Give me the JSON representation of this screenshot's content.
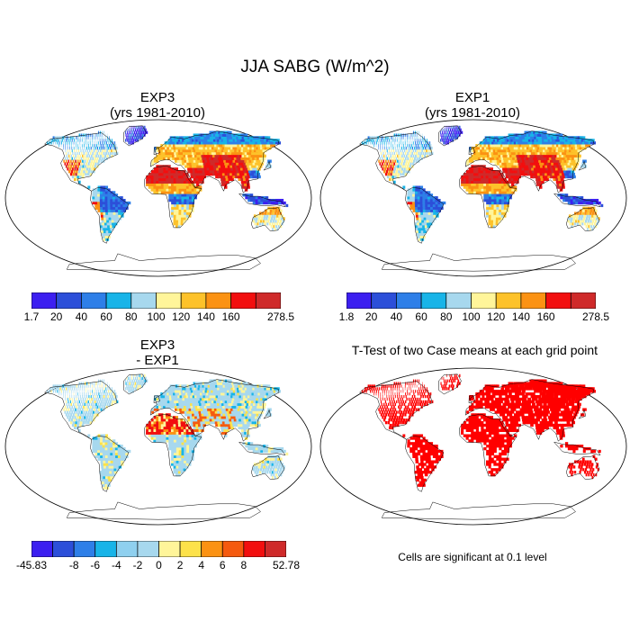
{
  "figure": {
    "title": "JJA SABG (W/m^2)",
    "note": "Cells are significant at 0.1 level"
  },
  "chart_data": [
    {
      "type": "heatmap",
      "panel": "top-left",
      "title_line1": "EXP3",
      "title_line2": "(yrs 1981-2010)",
      "variable": "JJA SABG",
      "units": "W/m^2",
      "projection": "robinson",
      "colorbar": {
        "ticks": [
          "1.7",
          "20",
          "40",
          "60",
          "80",
          "100",
          "120",
          "140",
          "160",
          "278.5"
        ],
        "colors": [
          "#3c1ff0",
          "#2c4fd9",
          "#2e7fe8",
          "#18b4e8",
          "#a7d8ee",
          "#fff59a",
          "#fdc22a",
          "#fb9213",
          "#f20f0f",
          "#cf2a2a"
        ],
        "min": 1.7,
        "max": 278.5
      }
    },
    {
      "type": "heatmap",
      "panel": "top-right",
      "title_line1": "EXP1",
      "title_line2": "(yrs 1981-2010)",
      "variable": "JJA SABG",
      "units": "W/m^2",
      "projection": "robinson",
      "colorbar": {
        "ticks": [
          "1.8",
          "20",
          "40",
          "60",
          "80",
          "100",
          "120",
          "140",
          "160",
          "278.5"
        ],
        "colors": [
          "#3c1ff0",
          "#2c4fd9",
          "#2e7fe8",
          "#18b4e8",
          "#a7d8ee",
          "#fff59a",
          "#fdc22a",
          "#fb9213",
          "#f20f0f",
          "#cf2a2a"
        ],
        "min": 1.8,
        "max": 278.5
      }
    },
    {
      "type": "heatmap",
      "panel": "bottom-left",
      "title_line1": "EXP3",
      "title_line2": "- EXP1",
      "variable": "JJA SABG difference",
      "units": "W/m^2",
      "projection": "robinson",
      "colorbar": {
        "ticks": [
          "-45.83",
          "-8",
          "-6",
          "-4",
          "-2",
          "0",
          "2",
          "4",
          "6",
          "8",
          "52.78"
        ],
        "colors": [
          "#3c1ff0",
          "#2c4fd9",
          "#2e7fe8",
          "#18b4e8",
          "#8fd0ef",
          "#a7d8ee",
          "#fff59a",
          "#fde24a",
          "#fb9213",
          "#f55a0f",
          "#f20f0f",
          "#cf2a2a"
        ],
        "min": -45.83,
        "max": 52.78
      }
    },
    {
      "type": "heatmap",
      "panel": "bottom-right",
      "title_line1": "T-Test of two Case means at each grid point",
      "title_line2": "",
      "projection": "robinson",
      "significance_level": 0.1,
      "significant_color": "#ff0000"
    }
  ],
  "panels": [
    {
      "name": "exp3-panel",
      "mode": "abs"
    },
    {
      "name": "exp1-panel",
      "mode": "abs"
    },
    {
      "name": "diff-panel",
      "mode": "diff"
    },
    {
      "name": "ttest-panel",
      "mode": "ttest"
    }
  ]
}
